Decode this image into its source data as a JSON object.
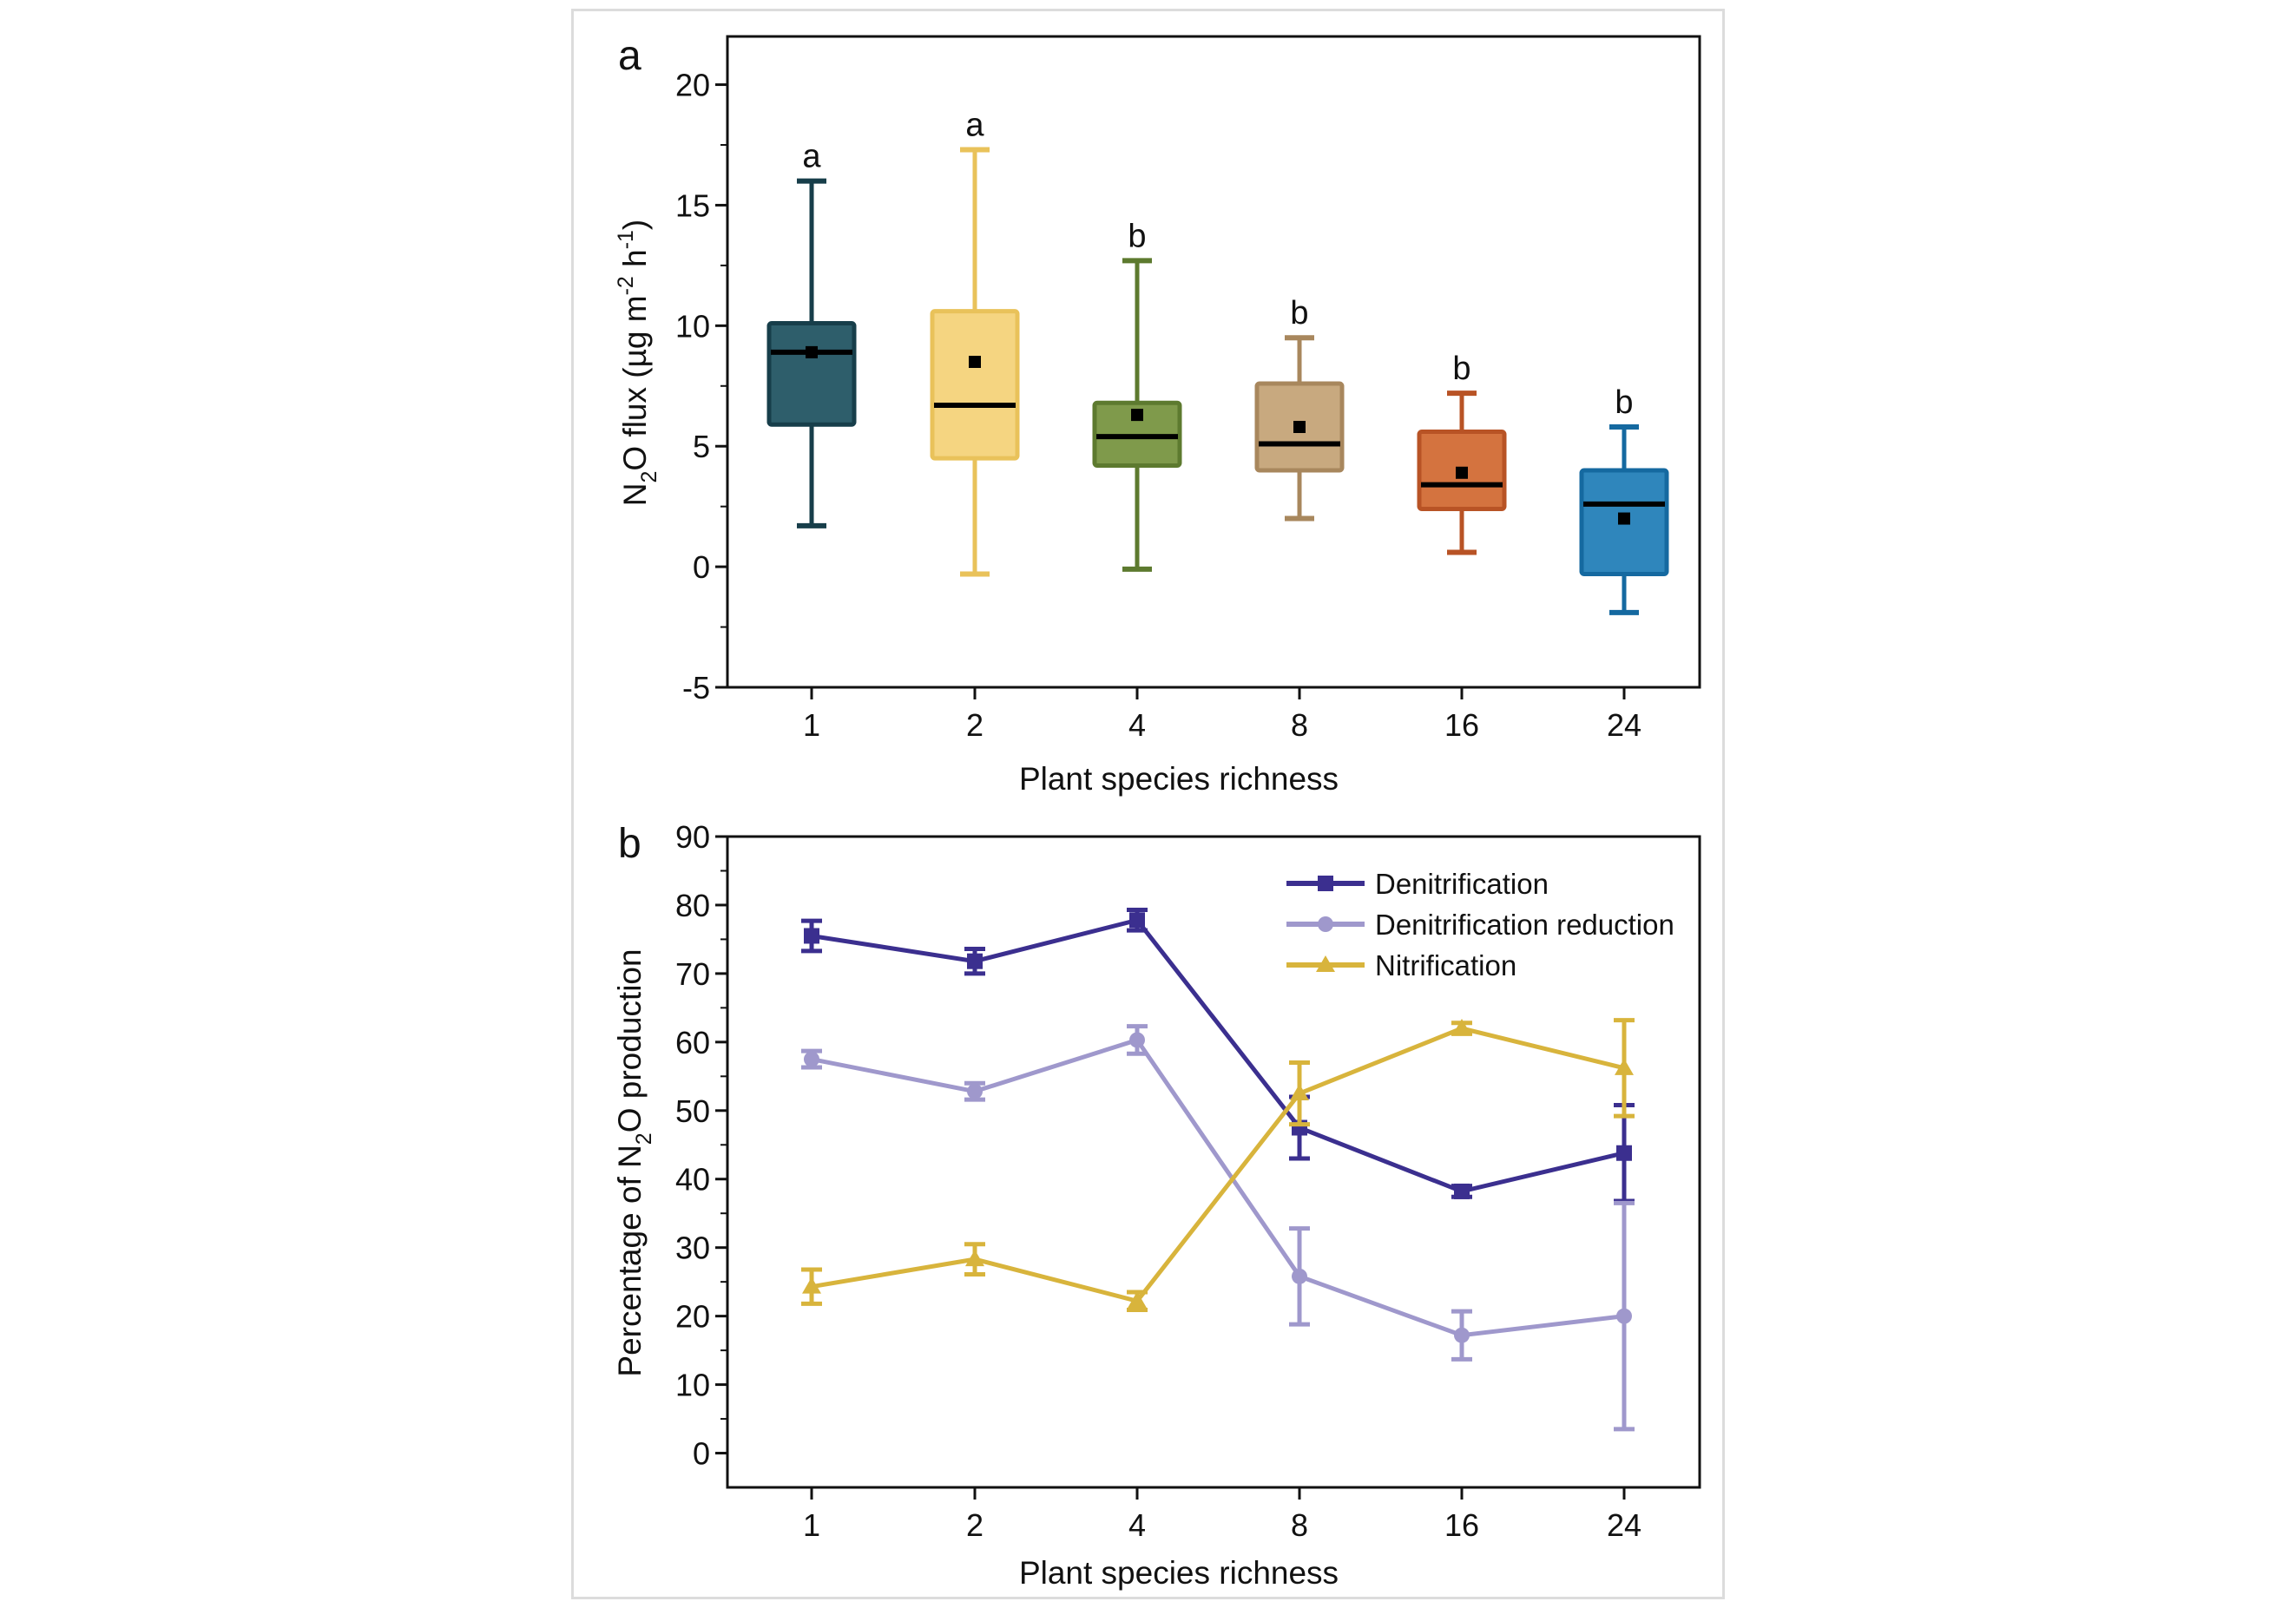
{
  "chart_data": [
    {
      "panel_label": "a",
      "type": "box",
      "categories": [
        "1",
        "2",
        "4",
        "8",
        "16",
        "24"
      ],
      "xlabel": "Plant species richness",
      "ylabel": {
        "main": "N",
        "sub": "2",
        "rest": "O flux (µg m",
        "sup1": "-2",
        "mid": " h",
        "sup2": "-1",
        "end": ")"
      },
      "ylim": [
        -5,
        22
      ],
      "yticks": [
        -5,
        0,
        5,
        10,
        15,
        20
      ],
      "yticks_minor_step": 2.5,
      "boxes": [
        {
          "category": "1",
          "whisker_low": 1.7,
          "q1": 5.9,
          "median": 8.9,
          "q3": 10.1,
          "whisker_high": 16.0,
          "mean": 8.9,
          "letter": "a",
          "color": "#2e5e6b",
          "edge": "#173e4a"
        },
        {
          "category": "2",
          "whisker_low": -0.3,
          "q1": 4.5,
          "median": 6.7,
          "q3": 10.6,
          "whisker_high": 17.3,
          "mean": 8.5,
          "letter": "a",
          "color": "#f5d581",
          "edge": "#e9c25a"
        },
        {
          "category": "4",
          "whisker_low": -0.1,
          "q1": 4.2,
          "median": 5.4,
          "q3": 6.8,
          "whisker_high": 12.7,
          "mean": 6.3,
          "letter": "b",
          "color": "#7f9a4b",
          "edge": "#5d7a2f"
        },
        {
          "category": "8",
          "whisker_low": 2.0,
          "q1": 4.0,
          "median": 5.1,
          "q3": 7.6,
          "whisker_high": 9.5,
          "mean": 5.8,
          "letter": "b",
          "color": "#c8a97f",
          "edge": "#a8875d"
        },
        {
          "category": "16",
          "whisker_low": 0.6,
          "q1": 2.4,
          "median": 3.4,
          "q3": 5.6,
          "whisker_high": 7.2,
          "mean": 3.9,
          "letter": "b",
          "color": "#d4733f",
          "edge": "#b85325"
        },
        {
          "category": "24",
          "whisker_low": -1.9,
          "q1": -0.3,
          "median": 2.6,
          "q3": 4.0,
          "whisker_high": 5.8,
          "mean": 2.0,
          "letter": "b",
          "color": "#2f86bc",
          "edge": "#1569a0"
        }
      ]
    },
    {
      "panel_label": "b",
      "type": "line",
      "categories": [
        "1",
        "2",
        "4",
        "8",
        "16",
        "24"
      ],
      "xlabel": "Plant species richness",
      "ylabel": {
        "main": "Percentage of N",
        "sub": "2",
        "rest": "O production"
      },
      "ylim": [
        -5,
        90
      ],
      "yticks": [
        0,
        10,
        20,
        30,
        40,
        50,
        60,
        70,
        80,
        90
      ],
      "yticks_minor_step": 5,
      "series": [
        {
          "name": "Denitrification",
          "color": "#3b2f8f",
          "marker": "square",
          "values": [
            75.5,
            71.8,
            77.8,
            47.5,
            38.2,
            43.8
          ],
          "errors": [
            2.2,
            1.8,
            1.5,
            4.5,
            0.8,
            7.0
          ]
        },
        {
          "name": "Denitrification reduction",
          "color": "#9f98cc",
          "marker": "circle",
          "values": [
            57.5,
            52.8,
            60.3,
            25.8,
            17.2,
            20.0
          ],
          "errors": [
            1.2,
            1.2,
            2.0,
            7.0,
            3.5,
            16.5
          ]
        },
        {
          "name": "Nitrification",
          "color": "#d8b43c",
          "marker": "triangle",
          "values": [
            24.3,
            28.3,
            22.2,
            52.5,
            62.0,
            56.2
          ],
          "errors": [
            2.5,
            2.2,
            1.3,
            4.5,
            0.8,
            7.0
          ]
        }
      ]
    }
  ]
}
